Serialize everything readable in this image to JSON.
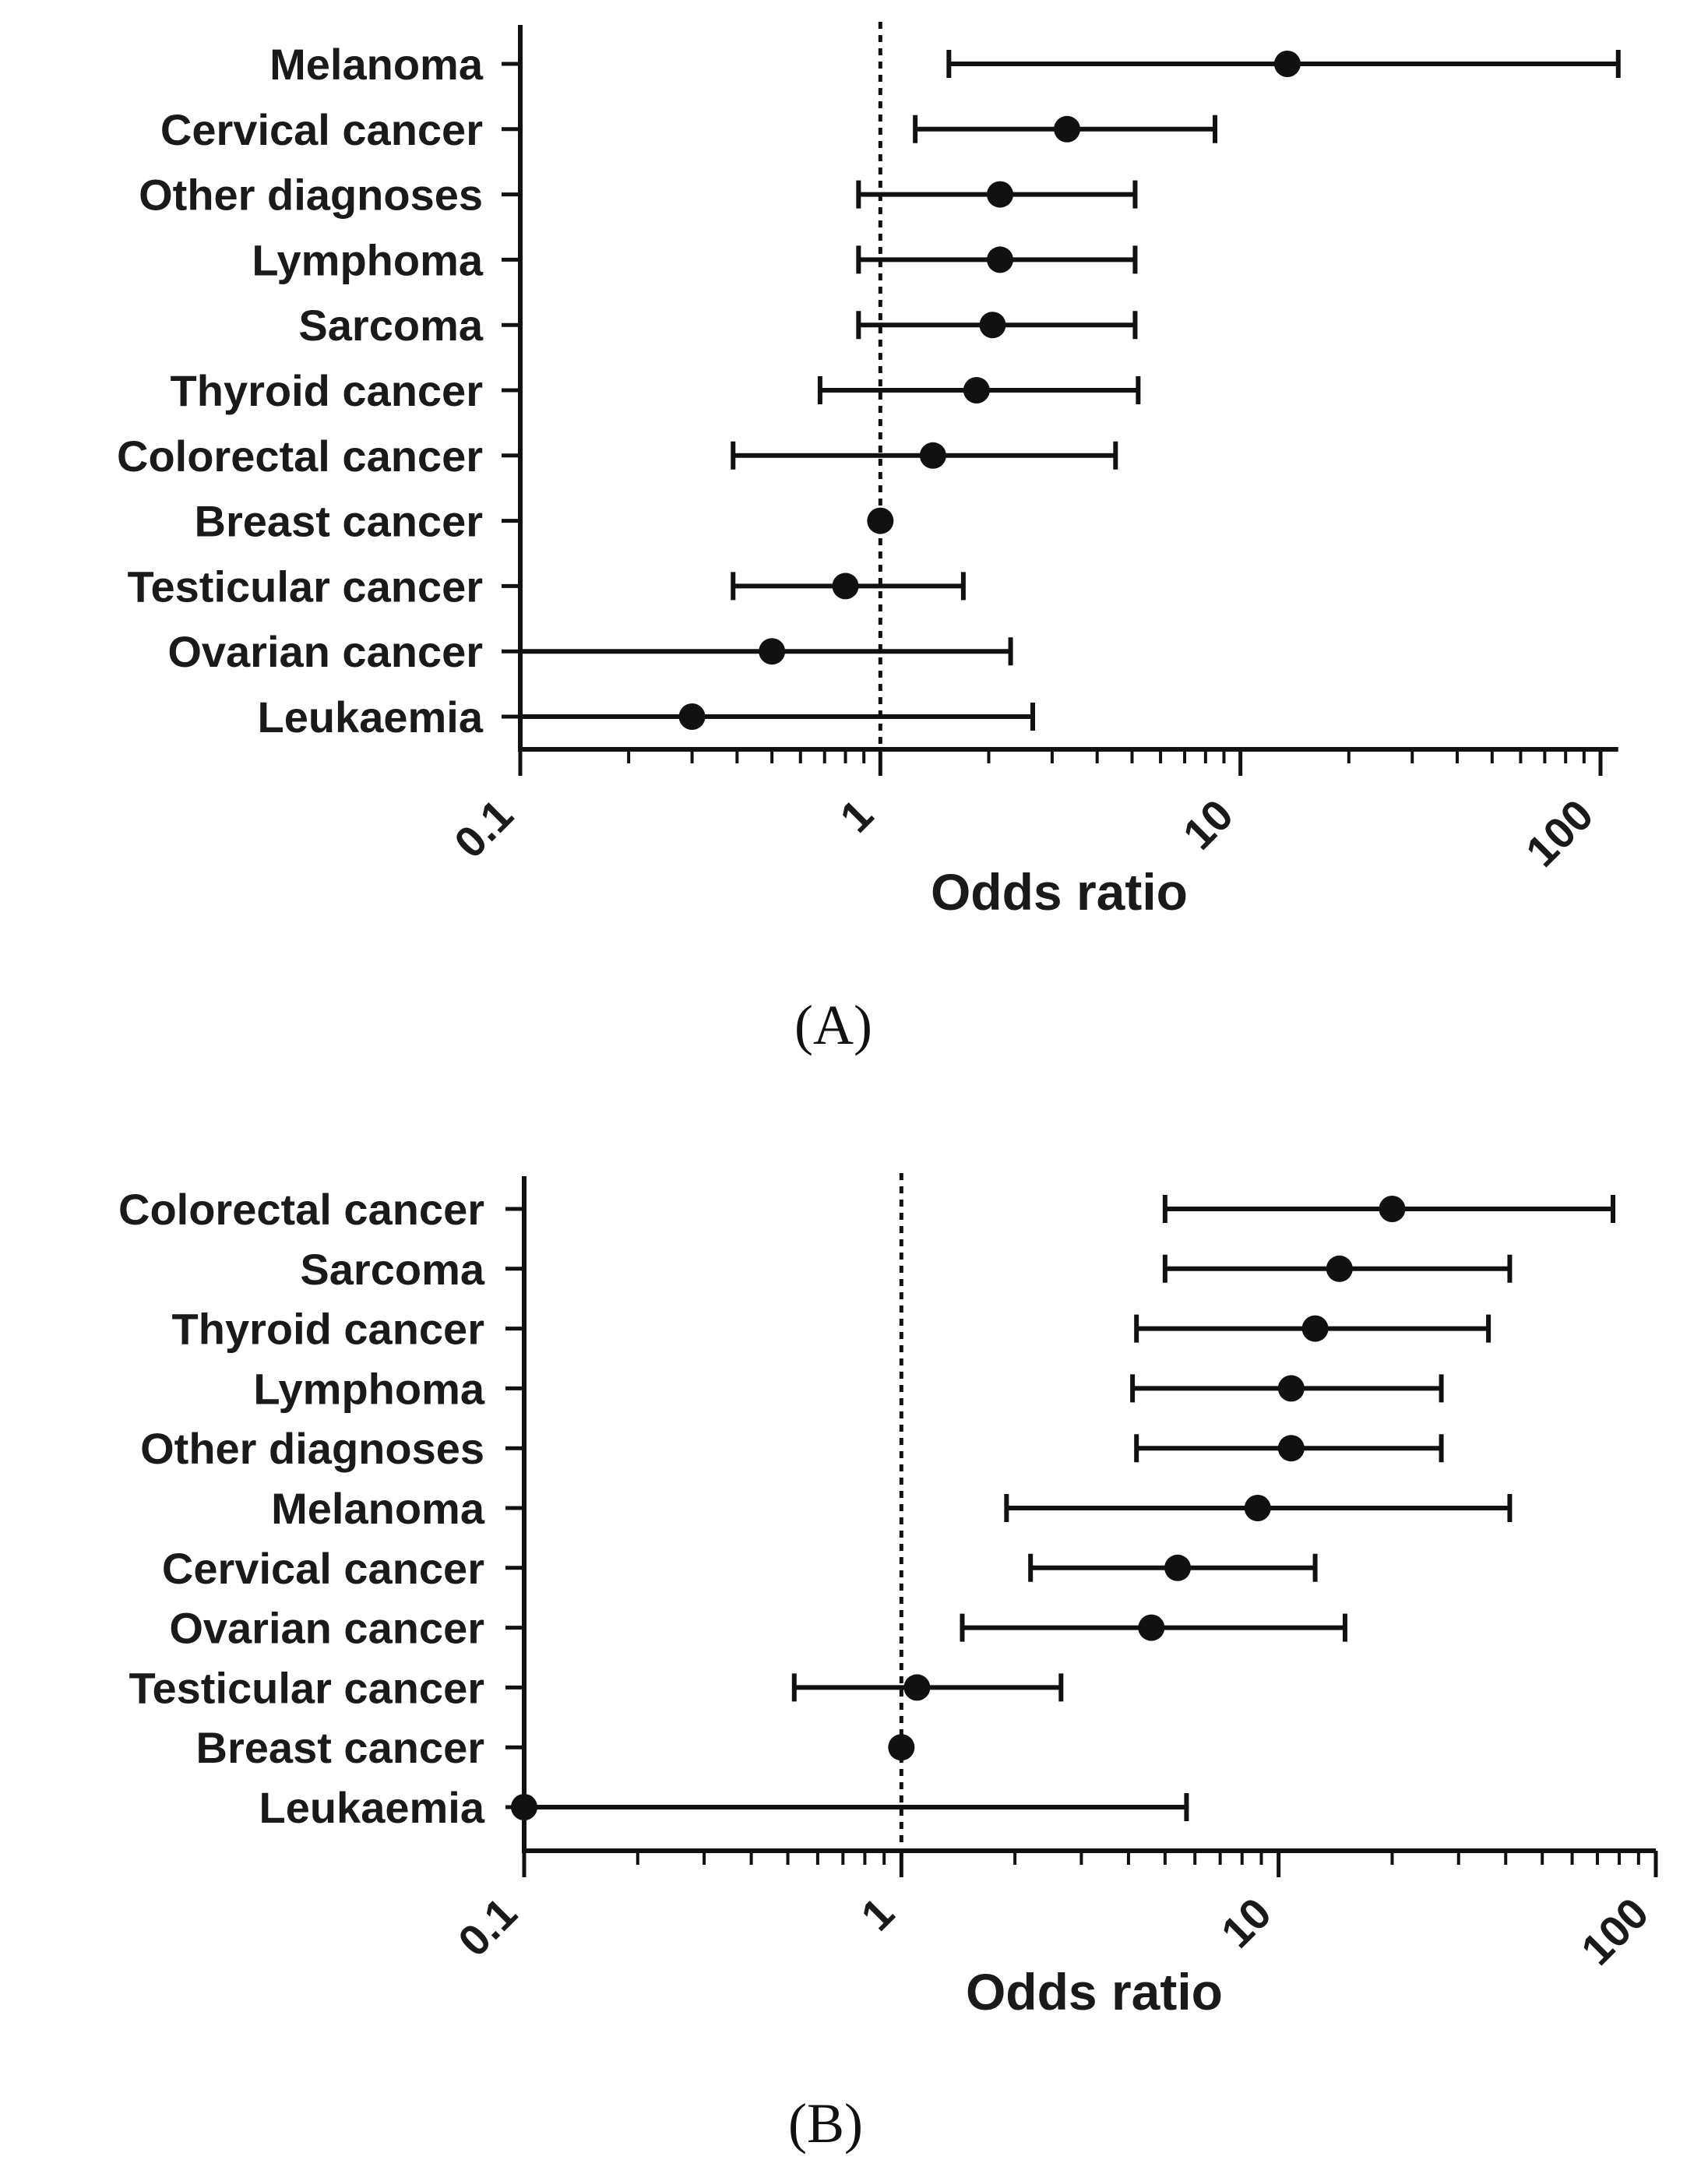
{
  "colors": {
    "ink": "#111111"
  },
  "chart_data": [
    {
      "type": "forest",
      "panel_label": "(A)",
      "xlabel": "Odds ratio",
      "xscale": "log",
      "xlim": [
        0.1,
        112
      ],
      "reference_line": 1,
      "ticks": [
        {
          "value": 0.1,
          "label": "0.1"
        },
        {
          "value": 1,
          "label": "1"
        },
        {
          "value": 10,
          "label": "10"
        },
        {
          "value": 100,
          "label": "100"
        }
      ],
      "categories": [
        "Melanoma",
        "Cervical cancer",
        "Other diagnoses",
        "Lymphoma",
        "Sarcoma",
        "Thyroid cancer",
        "Colorectal cancer",
        "Breast cancer",
        "Testicular cancer",
        "Ovarian cancer",
        "Leukaemia"
      ],
      "estimates": [
        13.5,
        3.3,
        2.15,
        2.15,
        2.05,
        1.85,
        1.4,
        1.0,
        0.8,
        0.5,
        0.3
      ],
      "ci_low": [
        1.55,
        1.25,
        0.87,
        0.87,
        0.87,
        0.68,
        0.39,
        null,
        0.39,
        0.1,
        0.1
      ],
      "ci_high": [
        112,
        8.5,
        5.1,
        5.1,
        5.1,
        5.2,
        4.5,
        null,
        1.7,
        2.3,
        2.65
      ]
    },
    {
      "type": "forest",
      "panel_label": "(B)",
      "xlabel": "Odds ratio",
      "xscale": "log",
      "xlim": [
        0.1,
        100
      ],
      "reference_line": 1,
      "ticks": [
        {
          "value": 0.1,
          "label": "0.1"
        },
        {
          "value": 1,
          "label": "1"
        },
        {
          "value": 10,
          "label": "10"
        },
        {
          "value": 100,
          "label": "100"
        }
      ],
      "categories": [
        "Colorectal cancer",
        "Sarcoma",
        "Thyroid cancer",
        "Lymphoma",
        "Other diagnoses",
        "Melanoma",
        "Cervical cancer",
        "Ovarian cancer",
        "Testicular cancer",
        "Breast cancer",
        "Leukaemia"
      ],
      "estimates": [
        20,
        14.5,
        12.5,
        10.8,
        10.8,
        8.8,
        5.4,
        4.6,
        1.1,
        1.0,
        0.1
      ],
      "ci_low": [
        5.0,
        5.0,
        4.2,
        4.1,
        4.2,
        1.9,
        2.2,
        1.45,
        0.52,
        null,
        0.1
      ],
      "ci_high": [
        77,
        41,
        36,
        27,
        27,
        41,
        12.5,
        15,
        2.65,
        null,
        5.7
      ]
    }
  ]
}
